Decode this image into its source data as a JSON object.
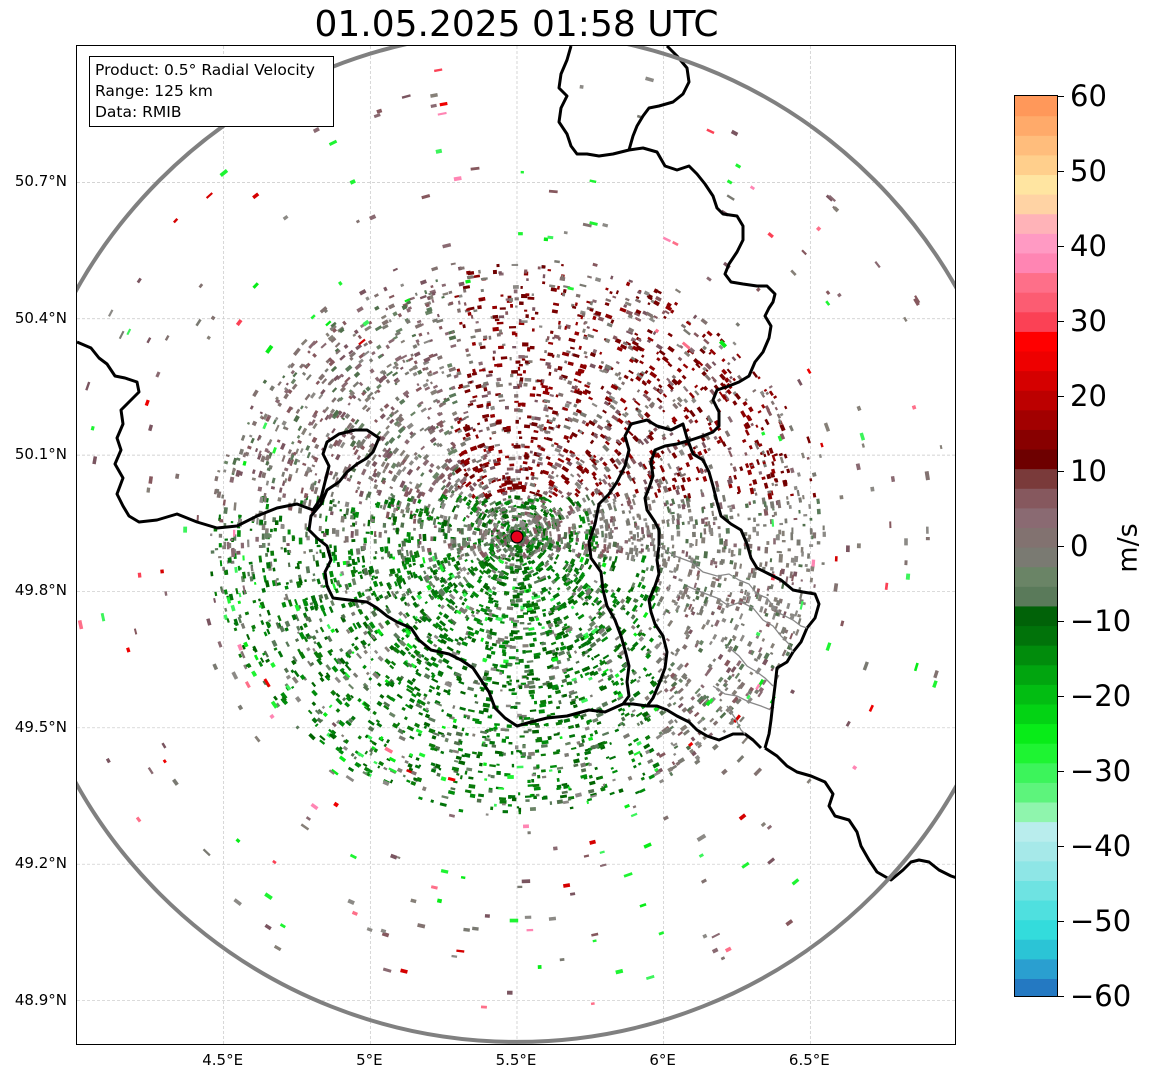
{
  "title": "01.05.2025 01:58 UTC",
  "info_box": {
    "product": "Product: 0.5° Radial Velocity",
    "range": "Range: 125 km",
    "data": "Data: RMIB"
  },
  "axes": {
    "y_ticks": [
      {
        "label": "50.7°N",
        "lat": 50.7
      },
      {
        "label": "50.4°N",
        "lat": 50.4
      },
      {
        "label": "50.1°N",
        "lat": 50.1
      },
      {
        "label": "49.8°N",
        "lat": 49.8
      },
      {
        "label": "49.5°N",
        "lat": 49.5
      },
      {
        "label": "49.2°N",
        "lat": 49.2
      },
      {
        "label": "48.9°N",
        "lat": 48.9
      }
    ],
    "x_ticks": [
      {
        "label": "4.5°E",
        "lon": 4.5
      },
      {
        "label": "5°E",
        "lon": 5.0
      },
      {
        "label": "5.5°E",
        "lon": 5.5
      },
      {
        "label": "6°E",
        "lon": 6.0
      },
      {
        "label": "6.5°E",
        "lon": 6.5
      }
    ],
    "lon_range": [
      4.0,
      7.0
    ],
    "lat_range": [
      48.8,
      51.0
    ],
    "grid": true
  },
  "radar": {
    "lon": 5.5,
    "lat": 49.92,
    "range_km": 125,
    "marker_color": "#e8001c",
    "ring_color": "#808080"
  },
  "colorbar": {
    "label": "m/s",
    "min": -60,
    "max": 60,
    "ticks": [
      "60",
      "50",
      "40",
      "30",
      "20",
      "10",
      "0",
      "−10",
      "−20",
      "−30",
      "−40",
      "−50",
      "−60"
    ],
    "colors": [
      "#2479c2",
      "#2a9fd0",
      "#2bc4d6",
      "#33dcdc",
      "#4fe0df",
      "#6ee3e2",
      "#8ee6e6",
      "#a6e9e9",
      "#b9eded",
      "#8ff5ad",
      "#5df47c",
      "#3cf45b",
      "#1ef432",
      "#08ec18",
      "#03d314",
      "#02bd12",
      "#01a50f",
      "#018c0c",
      "#01730a",
      "#016208",
      "#5a7a5a",
      "#6a8466",
      "#7a7a72",
      "#827270",
      "#8a6a72",
      "#86585e",
      "#7a3a3a",
      "#6e0000",
      "#880000",
      "#a20000",
      "#bc0000",
      "#d50000",
      "#ee0000",
      "#ff0000",
      "#fb4155",
      "#fc5c72",
      "#fe6f89",
      "#ff85b3",
      "#ff9ac3",
      "#ffb3b8",
      "#ffd3a4",
      "#ffe5a1",
      "#ffcf8c",
      "#ffbd7c",
      "#ffaa6a",
      "#ff985a"
    ]
  }
}
